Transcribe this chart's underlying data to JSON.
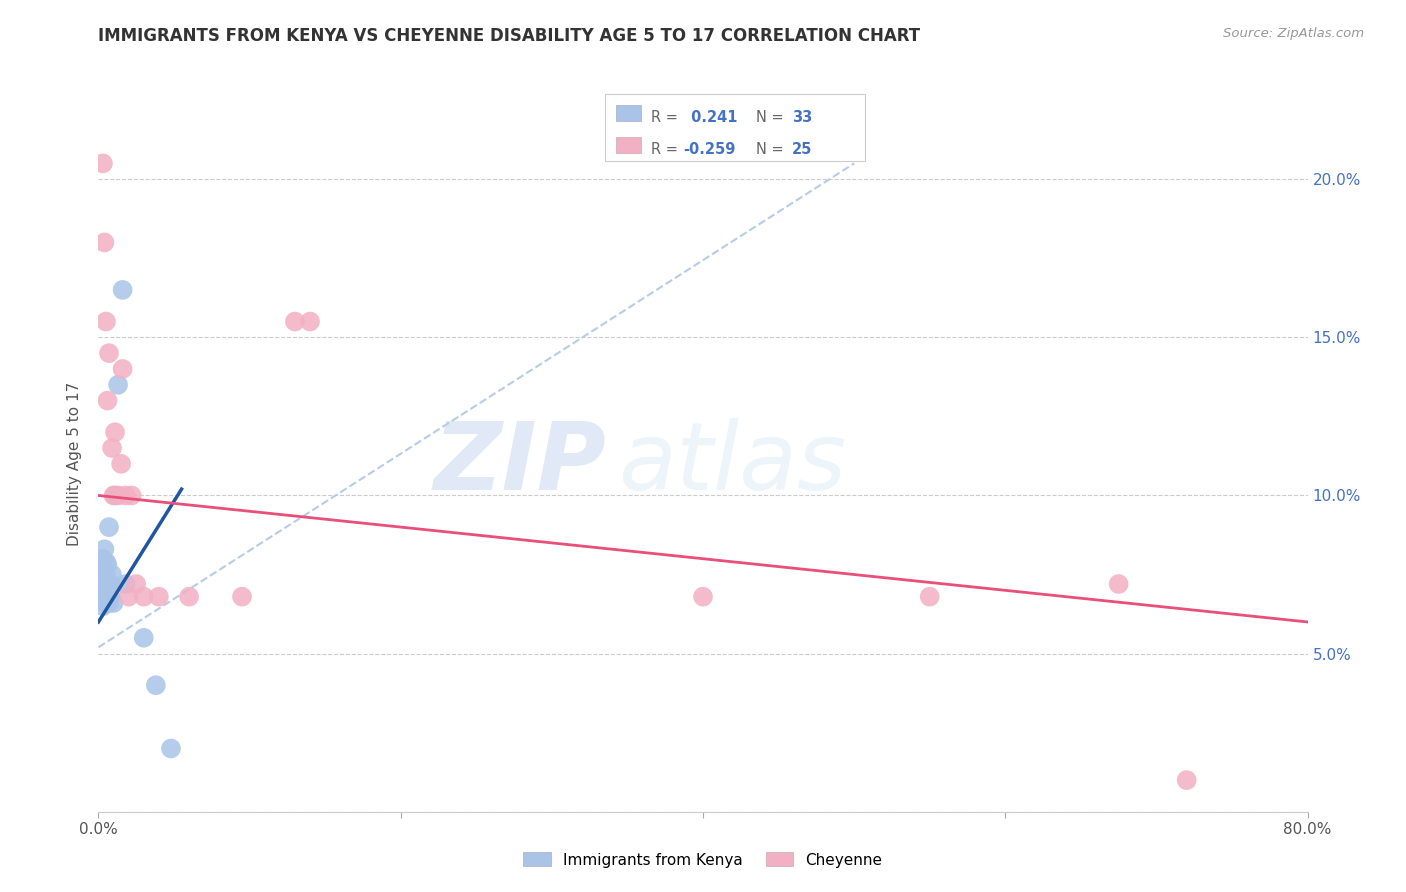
{
  "title": "IMMIGRANTS FROM KENYA VS CHEYENNE DISABILITY AGE 5 TO 17 CORRELATION CHART",
  "source": "Source: ZipAtlas.com",
  "ylabel": "Disability Age 5 to 17",
  "xlim": [
    0,
    0.8
  ],
  "ylim": [
    0,
    0.22
  ],
  "xticks": [
    0.0,
    0.2,
    0.4,
    0.6,
    0.8
  ],
  "yticks": [
    0.0,
    0.05,
    0.1,
    0.15,
    0.2
  ],
  "ytick_labels": [
    "",
    "5.0%",
    "10.0%",
    "15.0%",
    "20.0%"
  ],
  "xtick_labels": [
    "0.0%",
    "",
    "",
    "",
    "80.0%"
  ],
  "legend_blue_r": "0.241",
  "legend_blue_n": "33",
  "legend_pink_r": "-0.259",
  "legend_pink_n": "25",
  "blue_color": "#aac4e8",
  "pink_color": "#f2b0c4",
  "blue_line_color": "#2255a0",
  "pink_line_color": "#e8507a",
  "dashed_line_color": "#b8cce8",
  "watermark_zip": "ZIP",
  "watermark_atlas": "atlas",
  "blue_points_x": [
    0.001,
    0.001,
    0.002,
    0.002,
    0.003,
    0.003,
    0.003,
    0.003,
    0.004,
    0.004,
    0.004,
    0.004,
    0.005,
    0.005,
    0.005,
    0.005,
    0.006,
    0.006,
    0.006,
    0.007,
    0.007,
    0.007,
    0.008,
    0.008,
    0.009,
    0.01,
    0.011,
    0.013,
    0.016,
    0.018,
    0.03,
    0.038,
    0.048
  ],
  "blue_points_y": [
    0.068,
    0.074,
    0.07,
    0.076,
    0.065,
    0.07,
    0.074,
    0.08,
    0.067,
    0.071,
    0.076,
    0.083,
    0.066,
    0.07,
    0.075,
    0.079,
    0.067,
    0.072,
    0.078,
    0.066,
    0.07,
    0.09,
    0.068,
    0.072,
    0.075,
    0.066,
    0.1,
    0.135,
    0.165,
    0.072,
    0.055,
    0.04,
    0.02
  ],
  "pink_points_x": [
    0.003,
    0.004,
    0.005,
    0.006,
    0.007,
    0.009,
    0.01,
    0.011,
    0.013,
    0.015,
    0.016,
    0.018,
    0.02,
    0.022,
    0.025,
    0.03,
    0.04,
    0.06,
    0.095,
    0.13,
    0.14,
    0.4,
    0.55,
    0.675,
    0.72
  ],
  "pink_points_y": [
    0.205,
    0.18,
    0.155,
    0.13,
    0.145,
    0.115,
    0.1,
    0.12,
    0.1,
    0.11,
    0.14,
    0.1,
    0.068,
    0.1,
    0.072,
    0.068,
    0.068,
    0.068,
    0.068,
    0.155,
    0.155,
    0.068,
    0.068,
    0.072,
    0.01
  ],
  "blue_line_x": [
    0.0,
    0.055
  ],
  "blue_line_y": [
    0.06,
    0.102
  ],
  "dashed_line_x": [
    0.0,
    0.5
  ],
  "dashed_line_y": [
    0.052,
    0.205
  ],
  "pink_line_x": [
    0.0,
    0.8
  ],
  "pink_line_y": [
    0.1,
    0.06
  ]
}
